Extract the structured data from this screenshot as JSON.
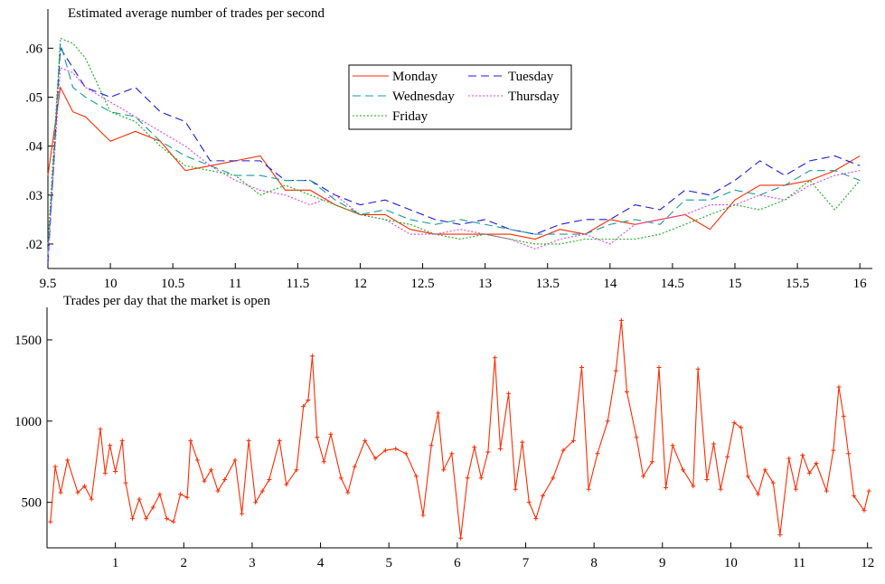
{
  "chart_data": [
    {
      "type": "line",
      "title": "Estimated average number of trades per second",
      "x": [
        9.5,
        9.6,
        9.7,
        9.8,
        10,
        10.2,
        10.4,
        10.6,
        10.8,
        11,
        11.2,
        11.4,
        11.6,
        11.8,
        12,
        12.2,
        12.4,
        12.6,
        12.8,
        13,
        13.2,
        13.4,
        13.6,
        13.8,
        14,
        14.2,
        14.4,
        14.6,
        14.8,
        15,
        15.2,
        15.4,
        15.6,
        15.8,
        16
      ],
      "series": [
        {
          "name": "Monday",
          "color": "#ff2a00",
          "dash": "solid",
          "values": [
            0.034,
            0.052,
            0.047,
            0.046,
            0.041,
            0.043,
            0.041,
            0.035,
            0.036,
            0.037,
            0.038,
            0.031,
            0.031,
            0.028,
            0.026,
            0.026,
            0.023,
            0.022,
            0.022,
            0.022,
            0.022,
            0.021,
            0.023,
            0.022,
            0.025,
            0.024,
            0.025,
            0.026,
            0.023,
            0.029,
            0.032,
            0.032,
            0.033,
            0.035,
            0.038
          ]
        },
        {
          "name": "Tuesday",
          "color": "#1a1adc",
          "dash": "dashed",
          "values": [
            0.016,
            0.06,
            0.056,
            0.052,
            0.05,
            0.052,
            0.047,
            0.045,
            0.037,
            0.037,
            0.037,
            0.033,
            0.033,
            0.03,
            0.028,
            0.029,
            0.027,
            0.025,
            0.024,
            0.025,
            0.023,
            0.022,
            0.024,
            0.025,
            0.025,
            0.028,
            0.027,
            0.031,
            0.03,
            0.033,
            0.037,
            0.034,
            0.037,
            0.038,
            0.036
          ]
        },
        {
          "name": "Wednesday",
          "color": "#1a9a9a",
          "dash": "dashed",
          "values": [
            0.018,
            0.061,
            0.052,
            0.05,
            0.047,
            0.046,
            0.041,
            0.038,
            0.036,
            0.034,
            0.034,
            0.033,
            0.033,
            0.029,
            0.026,
            0.027,
            0.025,
            0.024,
            0.025,
            0.024,
            0.023,
            0.022,
            0.022,
            0.022,
            0.024,
            0.025,
            0.024,
            0.029,
            0.029,
            0.031,
            0.03,
            0.032,
            0.035,
            0.035,
            0.033
          ]
        },
        {
          "name": "Thursday",
          "color": "#e040e0",
          "dash": "dotted",
          "values": [
            0.017,
            0.056,
            0.055,
            0.052,
            0.049,
            0.046,
            0.043,
            0.04,
            0.036,
            0.033,
            0.031,
            0.03,
            0.028,
            0.03,
            0.026,
            0.025,
            0.022,
            0.022,
            0.023,
            0.022,
            0.021,
            0.019,
            0.021,
            0.022,
            0.02,
            0.024,
            0.025,
            0.026,
            0.028,
            0.028,
            0.03,
            0.029,
            0.032,
            0.034,
            0.035
          ]
        },
        {
          "name": "Friday",
          "color": "#1aaa1a",
          "dash": "dotted",
          "values": [
            0.02,
            0.062,
            0.061,
            0.058,
            0.047,
            0.045,
            0.04,
            0.036,
            0.035,
            0.034,
            0.03,
            0.032,
            0.03,
            0.028,
            0.026,
            0.025,
            0.024,
            0.022,
            0.021,
            0.022,
            0.021,
            0.02,
            0.02,
            0.021,
            0.021,
            0.021,
            0.022,
            0.024,
            0.026,
            0.028,
            0.027,
            0.029,
            0.033,
            0.027,
            0.033
          ]
        }
      ],
      "xlim": [
        9.5,
        16.1
      ],
      "xticks": [
        9.5,
        10,
        10.5,
        11,
        11.5,
        12,
        12.5,
        13,
        13.5,
        14,
        14.5,
        15,
        15.5,
        16
      ],
      "ylim": [
        0.015,
        0.068
      ],
      "yticks": [
        {
          "value": 0.02,
          "label": ".02"
        },
        {
          "value": 0.03,
          "label": ".03"
        },
        {
          "value": 0.04,
          "label": ".04"
        },
        {
          "value": 0.05,
          "label": ".05"
        },
        {
          "value": 0.06,
          "label": ".06"
        }
      ],
      "legend": "upper center"
    },
    {
      "type": "line",
      "title": "Trades per day that the market is open",
      "x": [
        0.05,
        0.12,
        0.2,
        0.3,
        0.45,
        0.55,
        0.65,
        0.78,
        0.85,
        0.92,
        1.0,
        1.1,
        1.15,
        1.25,
        1.35,
        1.45,
        1.55,
        1.65,
        1.75,
        1.85,
        1.95,
        2.05,
        2.1,
        2.2,
        2.3,
        2.4,
        2.5,
        2.6,
        2.75,
        2.85,
        2.95,
        3.05,
        3.15,
        3.25,
        3.4,
        3.5,
        3.65,
        3.75,
        3.82,
        3.88,
        3.95,
        4.05,
        4.15,
        4.3,
        4.4,
        4.5,
        4.65,
        4.8,
        4.95,
        5.1,
        5.25,
        5.4,
        5.5,
        5.62,
        5.72,
        5.8,
        5.92,
        6.05,
        6.15,
        6.25,
        6.35,
        6.45,
        6.55,
        6.63,
        6.75,
        6.85,
        6.95,
        7.05,
        7.15,
        7.25,
        7.4,
        7.55,
        7.7,
        7.82,
        7.92,
        8.05,
        8.2,
        8.32,
        8.4,
        8.48,
        8.62,
        8.72,
        8.85,
        8.95,
        9.05,
        9.15,
        9.3,
        9.45,
        9.52,
        9.65,
        9.75,
        9.85,
        9.95,
        10.05,
        10.15,
        10.25,
        10.4,
        10.5,
        10.62,
        10.72,
        10.85,
        10.95,
        11.05,
        11.15,
        11.25,
        11.4,
        11.5,
        11.58,
        11.65,
        11.72,
        11.8,
        11.95,
        12.02
      ],
      "series": [
        {
          "color": "#ff2a00",
          "dash": "solid",
          "marker": "plus",
          "values": [
            380,
            720,
            560,
            760,
            560,
            600,
            520,
            950,
            680,
            850,
            690,
            880,
            620,
            400,
            520,
            400,
            470,
            550,
            400,
            380,
            550,
            530,
            880,
            760,
            630,
            700,
            570,
            640,
            760,
            430,
            880,
            500,
            570,
            640,
            880,
            610,
            700,
            1090,
            1130,
            1400,
            900,
            750,
            920,
            650,
            560,
            720,
            880,
            770,
            820,
            830,
            800,
            660,
            420,
            850,
            1050,
            700,
            800,
            280,
            650,
            840,
            650,
            810,
            1390,
            830,
            1170,
            580,
            870,
            500,
            400,
            540,
            650,
            820,
            880,
            1330,
            580,
            800,
            1000,
            1310,
            1620,
            1180,
            900,
            660,
            750,
            1330,
            590,
            850,
            700,
            600,
            1320,
            640,
            860,
            580,
            780,
            990,
            960,
            660,
            550,
            700,
            620,
            300,
            770,
            580,
            790,
            680,
            740,
            570,
            820,
            1210,
            1030,
            800,
            540,
            450,
            570
          ]
        }
      ],
      "xlim": [
        0,
        12.07
      ],
      "xticks": [
        1,
        2,
        3,
        4,
        5,
        6,
        7,
        8,
        9,
        10,
        11,
        12
      ],
      "ylim": [
        220,
        1700
      ],
      "yticks": [
        500,
        1000,
        1500
      ]
    }
  ]
}
